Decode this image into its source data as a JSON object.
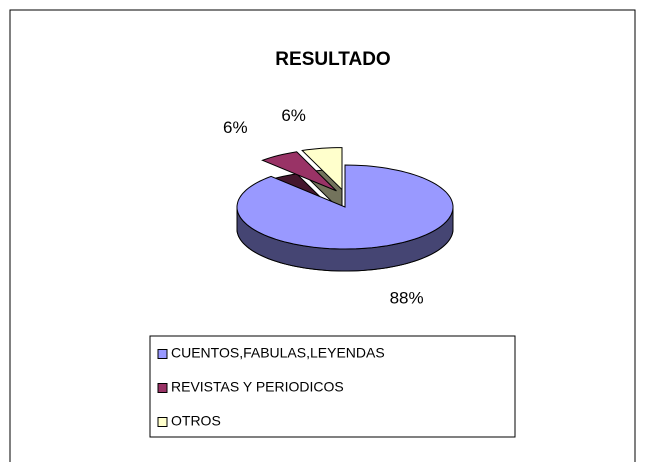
{
  "chart_data": {
    "type": "pie",
    "title": "RESULTADO",
    "categories": [
      "CUENTOS,FABULAS,LEYENDAS",
      "REVISTAS Y PERIODICOS",
      "OTROS"
    ],
    "values": [
      88,
      6,
      6
    ],
    "value_labels": [
      "88%",
      "6%",
      "6%"
    ],
    "colors": [
      "#9999ff",
      "#993366",
      "#ffffcc"
    ],
    "legend": "bottom"
  }
}
